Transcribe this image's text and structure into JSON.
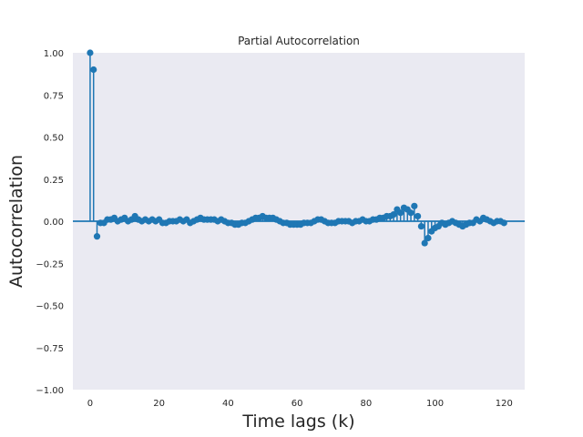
{
  "chart_data": {
    "type": "stem",
    "title": "Partial Autocorrelation",
    "xlabel": "Time lags (k)",
    "ylabel": "Autocorrelation",
    "xlim": [
      -5,
      126
    ],
    "ylim": [
      -1.0,
      1.0
    ],
    "xticks": [
      0,
      20,
      40,
      60,
      80,
      100,
      120
    ],
    "yticks": [
      1.0,
      0.75,
      0.5,
      0.25,
      0.0,
      -0.25,
      -0.5,
      -0.75,
      -1.0
    ],
    "ytick_labels": [
      "1.00",
      "0.75",
      "0.50",
      "0.25",
      "0.00",
      "−0.25",
      "−0.50",
      "−0.75",
      "−1.00"
    ],
    "grid": false,
    "colors": {
      "plot_bg": "#eaeaf2",
      "series": "#1f77b4",
      "text": "#262626"
    },
    "series": [
      {
        "x": [
          0,
          1,
          2,
          3,
          4,
          5,
          6,
          7,
          8,
          9,
          10,
          11,
          12,
          13,
          14,
          15,
          16,
          17,
          18,
          19,
          20,
          21,
          22,
          23,
          24,
          25,
          26,
          27,
          28,
          29,
          30,
          31,
          32,
          33,
          34,
          35,
          36,
          37,
          38,
          39,
          40,
          41,
          42,
          43,
          44,
          45,
          46,
          47,
          48,
          49,
          50,
          51,
          52,
          53,
          54,
          55,
          56,
          57,
          58,
          59,
          60,
          61,
          62,
          63,
          64,
          65,
          66,
          67,
          68,
          69,
          70,
          71,
          72,
          73,
          74,
          75,
          76,
          77,
          78,
          79,
          80,
          81,
          82,
          83,
          84,
          85,
          86,
          87,
          88,
          89,
          90,
          91,
          92,
          93,
          94,
          95,
          96,
          97,
          98,
          99,
          100,
          101,
          102,
          103,
          104,
          105,
          106,
          107,
          108,
          109,
          110,
          111,
          112,
          113,
          114,
          115,
          116,
          117,
          118,
          119,
          120
        ],
        "y": [
          1.0,
          0.9,
          -0.09,
          -0.01,
          -0.01,
          0.01,
          0.01,
          0.02,
          0.0,
          0.01,
          0.02,
          0.0,
          0.01,
          0.03,
          0.01,
          0.0,
          0.01,
          0.0,
          0.01,
          0.0,
          0.01,
          -0.01,
          -0.01,
          0.0,
          0.0,
          0.0,
          0.01,
          0.0,
          0.01,
          -0.01,
          0.0,
          0.01,
          0.02,
          0.01,
          0.01,
          0.01,
          0.01,
          0.0,
          0.01,
          0.0,
          -0.01,
          -0.01,
          -0.02,
          -0.02,
          -0.01,
          -0.01,
          0.0,
          0.01,
          0.02,
          0.02,
          0.03,
          0.02,
          0.02,
          0.02,
          0.01,
          0.0,
          -0.01,
          -0.01,
          -0.02,
          -0.02,
          -0.02,
          -0.02,
          -0.01,
          -0.01,
          -0.01,
          0.0,
          0.01,
          0.01,
          0.0,
          -0.01,
          -0.01,
          -0.01,
          0.0,
          0.0,
          0.0,
          0.0,
          -0.01,
          0.0,
          0.0,
          0.01,
          0.0,
          0.0,
          0.01,
          0.01,
          0.02,
          0.02,
          0.03,
          0.03,
          0.04,
          0.07,
          0.05,
          0.08,
          0.07,
          0.05,
          0.09,
          0.03,
          -0.03,
          -0.13,
          -0.1,
          -0.06,
          -0.04,
          -0.03,
          -0.01,
          -0.02,
          -0.01,
          0.0,
          -0.01,
          -0.02,
          -0.03,
          -0.02,
          -0.01,
          -0.01,
          0.01,
          0.0,
          0.02,
          0.01,
          0.0,
          -0.01,
          0.0,
          0.0,
          -0.01
        ]
      }
    ]
  }
}
